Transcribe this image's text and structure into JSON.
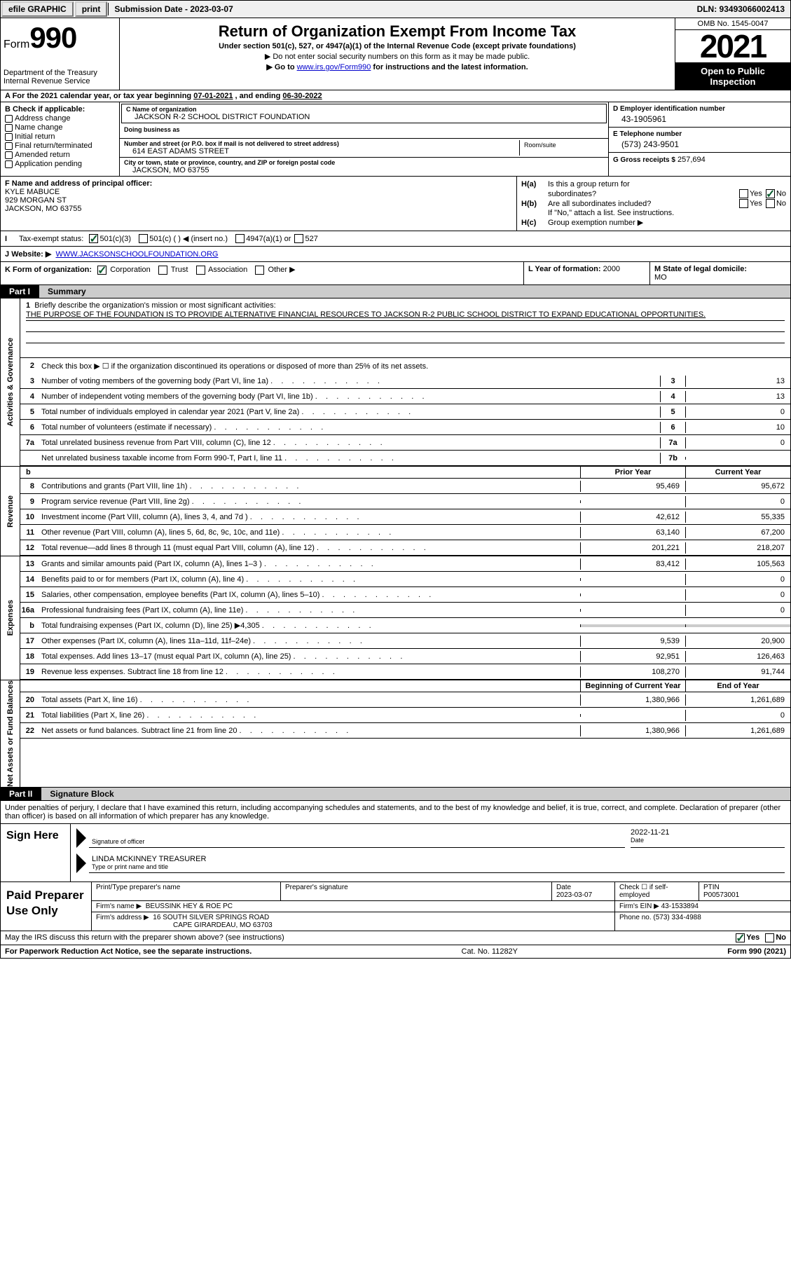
{
  "topbar": {
    "efile": "efile GRAPHIC",
    "print": "print",
    "submission": "Submission Date - 2023-03-07",
    "dln": "DLN: 93493066002413"
  },
  "header": {
    "form_word": "Form",
    "form_num": "990",
    "dept": "Department of the Treasury",
    "irs": "Internal Revenue Service",
    "title": "Return of Organization Exempt From Income Tax",
    "sub": "Under section 501(c), 527, or 4947(a)(1) of the Internal Revenue Code (except private foundations)",
    "line1": "▶ Do not enter social security numbers on this form as it may be made public.",
    "line2_pre": "▶ Go to ",
    "line2_link": "www.irs.gov/Form990",
    "line2_post": " for instructions and the latest information.",
    "omb": "OMB No. 1545-0047",
    "year": "2021",
    "open": "Open to Public Inspection"
  },
  "lineA": {
    "pre": "A For the 2021 calendar year, or tax year beginning ",
    "begin": "07-01-2021",
    "mid": " , and ending ",
    "end": "06-30-2022"
  },
  "colB": {
    "hdr": "B Check if applicable:",
    "items": [
      "Address change",
      "Name change",
      "Initial return",
      "Final return/terminated",
      "Amended return",
      "Application pending"
    ]
  },
  "colC": {
    "name_lbl": "C Name of organization",
    "name": "JACKSON R-2 SCHOOL DISTRICT FOUNDATION",
    "dba_lbl": "Doing business as",
    "addr_lbl": "Number and street (or P.O. box if mail is not delivered to street address)",
    "addr": "614 EAST ADAMS STREET",
    "room_lbl": "Room/suite",
    "city_lbl": "City or town, state or province, country, and ZIP or foreign postal code",
    "city": "JACKSON, MO  63755"
  },
  "colD": {
    "ein_lbl": "D Employer identification number",
    "ein": "43-1905961",
    "tel_lbl": "E Telephone number",
    "tel": "(573) 243-9501",
    "gross_lbl": "G Gross receipts $",
    "gross": "257,694"
  },
  "colF": {
    "lbl": "F Name and address of principal officer:",
    "name": "KYLE MABUCE",
    "addr1": "929 MORGAN ST",
    "addr2": "JACKSON, MO  63755"
  },
  "colH": {
    "a_lbl": "H(a)",
    "a_txt1": "Is this a group return for",
    "a_txt2": "subordinates?",
    "b_lbl": "H(b)",
    "b_txt": "Are all subordinates included?",
    "note": "If \"No,\" attach a list. See instructions.",
    "c_lbl": "H(c)",
    "c_txt": "Group exemption number ▶",
    "yes": "Yes",
    "no": "No"
  },
  "lineI": {
    "lbl": "I",
    "txt": "Tax-exempt status:",
    "o1": "501(c)(3)",
    "o2": "501(c) (   ) ◀ (insert no.)",
    "o3": "4947(a)(1) or",
    "o4": "527"
  },
  "lineJ": {
    "lbl": "J",
    "txt": "Website: ▶",
    "url": "WWW.JACKSONSCHOOLFOUNDATION.ORG"
  },
  "lineK": {
    "lbl": "K Form of organization:",
    "o1": "Corporation",
    "o2": "Trust",
    "o3": "Association",
    "o4": "Other ▶"
  },
  "lineL": {
    "lbl": "L Year of formation:",
    "val": "2000"
  },
  "lineM": {
    "lbl": "M State of legal domicile:",
    "val": "MO"
  },
  "part1": {
    "tab": "Part I",
    "title": "Summary"
  },
  "summary": {
    "side_ag": "Activities & Governance",
    "side_rev": "Revenue",
    "side_exp": "Expenses",
    "side_nab": "Net Assets or Fund Balances",
    "q1": "Briefly describe the organization's mission or most significant activities:",
    "mission": "THE PURPOSE OF THE FOUNDATION IS TO PROVIDE ALTERNATIVE FINANCIAL RESOURCES TO JACKSON R-2 PUBLIC SCHOOL DISTRICT TO EXPAND EDUCATIONAL OPPORTUNITIES.",
    "q2": "Check this box ▶ ☐ if the organization discontinued its operations or disposed of more than 25% of its net assets.",
    "rows_single": [
      {
        "n": "3",
        "desc": "Number of voting members of the governing body (Part VI, line 1a)",
        "box": "3",
        "val": "13"
      },
      {
        "n": "4",
        "desc": "Number of independent voting members of the governing body (Part VI, line 1b)",
        "box": "4",
        "val": "13"
      },
      {
        "n": "5",
        "desc": "Total number of individuals employed in calendar year 2021 (Part V, line 2a)",
        "box": "5",
        "val": "0"
      },
      {
        "n": "6",
        "desc": "Total number of volunteers (estimate if necessary)",
        "box": "6",
        "val": "10"
      },
      {
        "n": "7a",
        "desc": "Total unrelated business revenue from Part VIII, column (C), line 12",
        "box": "7a",
        "val": "0"
      },
      {
        "n": "",
        "desc": "Net unrelated business taxable income from Form 990-T, Part I, line 11",
        "box": "7b",
        "val": ""
      }
    ],
    "b_row": "b",
    "col_prior": "Prior Year",
    "col_current": "Current Year",
    "rev_rows": [
      {
        "n": "8",
        "desc": "Contributions and grants (Part VIII, line 1h)",
        "py": "95,469",
        "cy": "95,672"
      },
      {
        "n": "9",
        "desc": "Program service revenue (Part VIII, line 2g)",
        "py": "",
        "cy": "0"
      },
      {
        "n": "10",
        "desc": "Investment income (Part VIII, column (A), lines 3, 4, and 7d )",
        "py": "42,612",
        "cy": "55,335"
      },
      {
        "n": "11",
        "desc": "Other revenue (Part VIII, column (A), lines 5, 6d, 8c, 9c, 10c, and 11e)",
        "py": "63,140",
        "cy": "67,200"
      },
      {
        "n": "12",
        "desc": "Total revenue—add lines 8 through 11 (must equal Part VIII, column (A), line 12)",
        "py": "201,221",
        "cy": "218,207"
      }
    ],
    "exp_rows": [
      {
        "n": "13",
        "desc": "Grants and similar amounts paid (Part IX, column (A), lines 1–3 )",
        "py": "83,412",
        "cy": "105,563"
      },
      {
        "n": "14",
        "desc": "Benefits paid to or for members (Part IX, column (A), line 4)",
        "py": "",
        "cy": "0"
      },
      {
        "n": "15",
        "desc": "Salaries, other compensation, employee benefits (Part IX, column (A), lines 5–10)",
        "py": "",
        "cy": "0"
      },
      {
        "n": "16a",
        "desc": "Professional fundraising fees (Part IX, column (A), line 11e)",
        "py": "",
        "cy": "0"
      },
      {
        "n": "b",
        "desc": "Total fundraising expenses (Part IX, column (D), line 25) ▶4,305",
        "py": "SHADE",
        "cy": "SHADE"
      },
      {
        "n": "17",
        "desc": "Other expenses (Part IX, column (A), lines 11a–11d, 11f–24e)",
        "py": "9,539",
        "cy": "20,900"
      },
      {
        "n": "18",
        "desc": "Total expenses. Add lines 13–17 (must equal Part IX, column (A), line 25)",
        "py": "92,951",
        "cy": "126,463"
      },
      {
        "n": "19",
        "desc": "Revenue less expenses. Subtract line 18 from line 12",
        "py": "108,270",
        "cy": "91,744"
      }
    ],
    "col_begin": "Beginning of Current Year",
    "col_end": "End of Year",
    "na_rows": [
      {
        "n": "20",
        "desc": "Total assets (Part X, line 16)",
        "py": "1,380,966",
        "cy": "1,261,689"
      },
      {
        "n": "21",
        "desc": "Total liabilities (Part X, line 26)",
        "py": "",
        "cy": "0"
      },
      {
        "n": "22",
        "desc": "Net assets or fund balances. Subtract line 21 from line 20",
        "py": "1,380,966",
        "cy": "1,261,689"
      }
    ]
  },
  "part2": {
    "tab": "Part II",
    "title": "Signature Block"
  },
  "sig": {
    "intro": "Under penalties of perjury, I declare that I have examined this return, including accompanying schedules and statements, and to the best of my knowledge and belief, it is true, correct, and complete. Declaration of preparer (other than officer) is based on all information of which preparer has any knowledge.",
    "sign_here": "Sign Here",
    "sig_of": "Signature of officer",
    "date_lbl": "Date",
    "date_val": "2022-11-21",
    "name": "LINDA MCKINNEY  TREASURER",
    "name_lbl": "Type or print name and title"
  },
  "prep": {
    "hdr": "Paid Preparer Use Only",
    "p_name_lbl": "Print/Type preparer's name",
    "p_sig_lbl": "Preparer's signature",
    "p_date_lbl": "Date",
    "p_date": "2023-03-07",
    "self_lbl": "Check ☐ if self-employed",
    "ptin_lbl": "PTIN",
    "ptin": "P00573001",
    "firm_name_lbl": "Firm's name    ▶",
    "firm_name": "BEUSSINK HEY & ROE PC",
    "firm_ein_lbl": "Firm's EIN ▶",
    "firm_ein": "43-1533894",
    "firm_addr_lbl": "Firm's address ▶",
    "firm_addr1": "16 SOUTH SILVER SPRINGS ROAD",
    "firm_addr2": "CAPE GIRARDEAU, MO  63703",
    "phone_lbl": "Phone no.",
    "phone": "(573) 334-4988"
  },
  "discuss": {
    "txt": "May the IRS discuss this return with the preparer shown above? (see instructions)",
    "yes": "Yes",
    "no": "No"
  },
  "footer": {
    "left": "For Paperwork Reduction Act Notice, see the separate instructions.",
    "mid": "Cat. No. 11282Y",
    "right": "Form 990 (2021)"
  }
}
